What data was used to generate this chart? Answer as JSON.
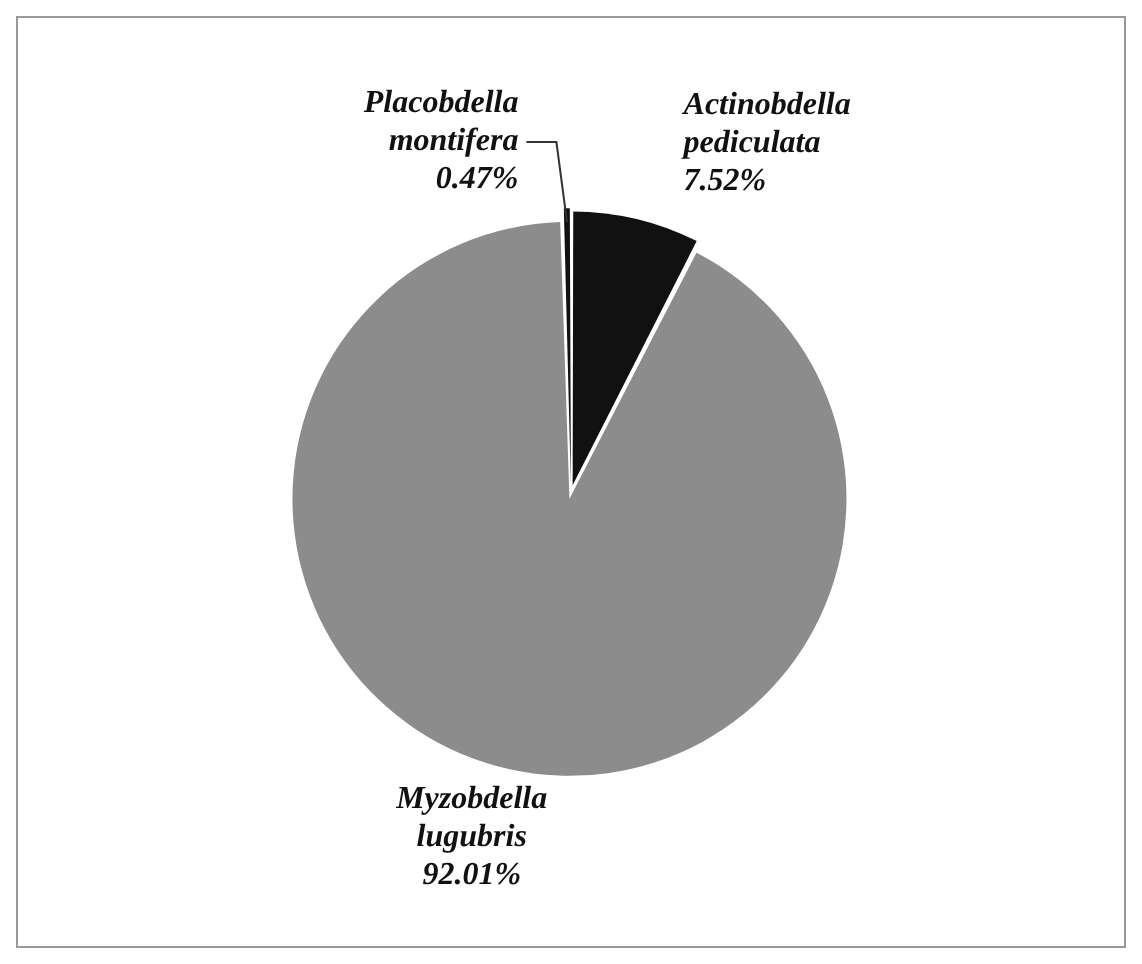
{
  "chart_data": {
    "type": "pie",
    "categories": [
      "Actinobdella pediculata",
      "Myzobdella lugubris",
      "Placobdella montifera"
    ],
    "values": [
      7.52,
      92.01,
      0.47
    ],
    "colors": [
      "#111111",
      "#8c8c8c",
      "#111111"
    ],
    "value_labels": [
      "7.52%",
      "92.01%",
      "0.47%"
    ],
    "legend": false
  }
}
